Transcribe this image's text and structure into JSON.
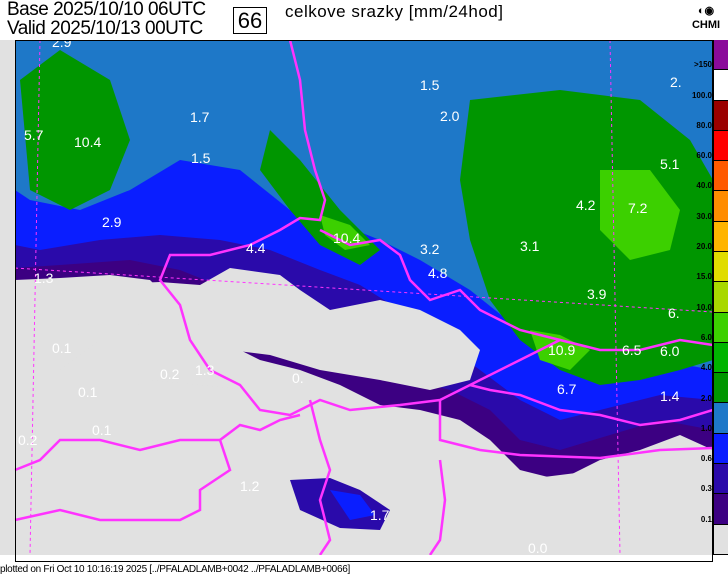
{
  "header": {
    "base_label": "Base",
    "base_time": "2025/10/10 06UTC",
    "valid_label": "Valid",
    "valid_time": "2025/10/13 00UTC",
    "step": "66",
    "title": "celkove srazky [mm/24hod]",
    "logo": "CHMI"
  },
  "legend": {
    "labels": [
      ">150",
      "100.0",
      "80.0",
      "60.0",
      "40.0",
      "30.0",
      "20.0",
      "15.0",
      "10.0",
      "6.0",
      "4.0",
      "2.0",
      "1.0",
      "0.6",
      "0.3",
      "0.1"
    ],
    "colors": [
      "#8a0a9a",
      "#ffffff",
      "#9a0000",
      "#ff0000",
      "#ff5a00",
      "#ff8c00",
      "#ffb400",
      "#e0dc00",
      "#a8d800",
      "#3cd000",
      "#00b400",
      "#009600",
      "#1e78c8",
      "#0a1eff",
      "#2a0aaa",
      "#3c0082",
      "#e1e1e1"
    ]
  },
  "map_values": [
    "2.9",
    "1.5",
    "5.7",
    "10.4",
    "1.7",
    "2.0",
    "1.5",
    "5.1",
    "4.2",
    "7.2",
    "2.9",
    "4.4",
    "10.4",
    "3.2",
    "3.1",
    "1.3",
    "4.8",
    "3.9",
    "6.",
    "0.1",
    "10.9",
    "6.5",
    "6.0",
    "0.2",
    "1.3",
    "0.",
    "6.7",
    "0.1",
    "1.4",
    "0.1",
    "0.2",
    "1.2",
    "1.7",
    "0.0",
    "2."
  ],
  "footer": "plotted on Fri Oct 10 10:16:19 2025 [../PFALADLAMB+0042 ../PFALADLAMB+0066]"
}
